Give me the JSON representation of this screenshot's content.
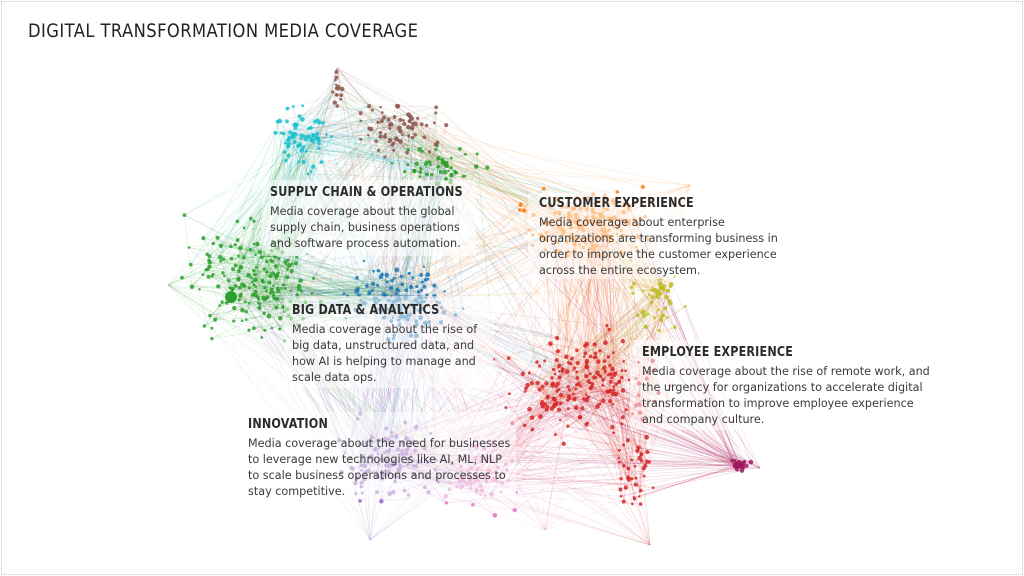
{
  "title": "DIGITAL TRANSFORMATION MEDIA COVERAGE",
  "colors": {
    "supply_chain": "#2ca02c",
    "customer_experience": "#ff7f0e",
    "big_data": "#1f77b4",
    "employee_experience": "#d62728",
    "innovation": "#9467bd",
    "innovation_pink": "#e377c2",
    "cyan": "#17becf",
    "brown": "#8c564b",
    "olive": "#bcbd22",
    "magenta": "#a0175f"
  },
  "clusters": {
    "supply_chain": {
      "heading": "SUPPLY CHAIN & OPERATIONS",
      "description": "Media coverage about the global\nsupply chain, business operations\nand software process automation."
    },
    "customer_experience": {
      "heading": "CUSTOMER EXPERIENCE",
      "description": "Media coverage about enterprise\norganizations are transforming business in\norder to improve the customer experience\nacross the entire ecosystem."
    },
    "big_data": {
      "heading": "BIG DATA & ANALYTICS",
      "description": "Media coverage about the rise of\nbig data, unstructured data, and\nhow AI is helping to manage and\nscale data ops."
    },
    "employee_experience": {
      "heading": "EMPLOYEE EXPERIENCE",
      "description": "Media coverage about the rise of remote work, and\nthe urgency for organizations to accelerate digital\ntransformation to improve employee experience\nand company culture."
    },
    "innovation": {
      "heading": "INNOVATION",
      "description": "Media coverage about the need for businesses\nto leverage new technologies like AI, ML, NLP\nto scale business operations and processes to\nstay competitive."
    }
  }
}
